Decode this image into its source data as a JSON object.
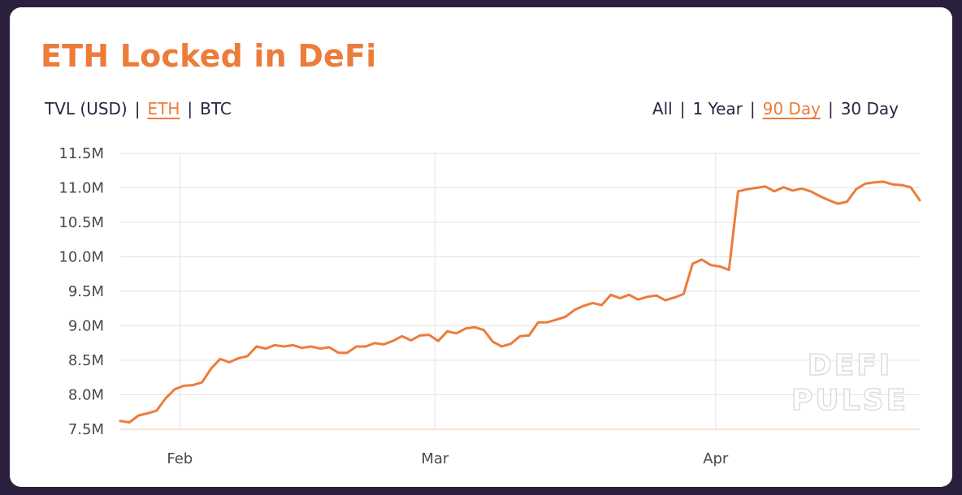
{
  "title": "ETH Locked in DeFi",
  "denomination_options": [
    {
      "label": "TVL (USD)",
      "active": false
    },
    {
      "label": "ETH",
      "active": true
    },
    {
      "label": "BTC",
      "active": false
    }
  ],
  "range_options": [
    {
      "label": "All",
      "active": false
    },
    {
      "label": "1 Year",
      "active": false
    },
    {
      "label": "90 Day",
      "active": true
    },
    {
      "label": "30 Day",
      "active": false
    }
  ],
  "separator": "|",
  "watermark": [
    "DEFI",
    "PULSE"
  ],
  "colors": {
    "accent": "#ec7c3a",
    "text": "#2b2343",
    "grid": "#e3e3e3",
    "background": "#2a1f3d"
  },
  "chart_data": {
    "type": "line",
    "title": "ETH Locked in DeFi",
    "xlabel": "",
    "ylabel": "",
    "x_ticks": [
      {
        "label": "Feb",
        "day": 7
      },
      {
        "label": "Mar",
        "day": 37
      },
      {
        "label": "Apr",
        "day": 70
      }
    ],
    "x_range_days": [
      0,
      94
    ],
    "y_ticks": [
      "7.5M",
      "8.0M",
      "8.5M",
      "9.0M",
      "9.5M",
      "10.0M",
      "10.5M",
      "11.0M",
      "11.5M"
    ],
    "ylim": [
      7.5,
      11.5
    ],
    "y_unit": "M",
    "grid": true,
    "series": [
      {
        "color": "#ec7c3a",
        "values": [
          7.62,
          7.6,
          7.7,
          7.73,
          7.77,
          7.95,
          8.08,
          8.13,
          8.14,
          8.18,
          8.38,
          8.52,
          8.47,
          8.53,
          8.56,
          8.7,
          8.67,
          8.72,
          8.7,
          8.72,
          8.68,
          8.7,
          8.67,
          8.69,
          8.61,
          8.61,
          8.7,
          8.7,
          8.75,
          8.73,
          8.78,
          8.85,
          8.79,
          8.86,
          8.87,
          8.78,
          8.92,
          8.89,
          8.96,
          8.98,
          8.94,
          8.77,
          8.7,
          8.74,
          8.85,
          8.86,
          9.05,
          9.05,
          9.09,
          9.13,
          9.23,
          9.29,
          9.33,
          9.3,
          9.45,
          9.4,
          9.45,
          9.38,
          9.42,
          9.44,
          9.37,
          9.41,
          9.46,
          9.9,
          9.96,
          9.88,
          9.86,
          9.81,
          10.95,
          10.98,
          11.0,
          11.02,
          10.95,
          11.01,
          10.96,
          10.99,
          10.95,
          10.88,
          10.82,
          10.77,
          10.8,
          10.98,
          11.06,
          11.08,
          11.09,
          11.05,
          11.04,
          11.01,
          10.82
        ]
      }
    ]
  }
}
